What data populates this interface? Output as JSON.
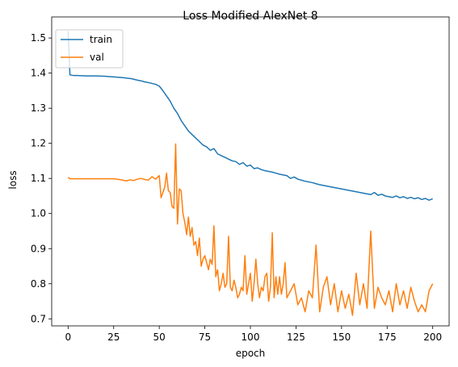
{
  "chart_data": {
    "type": "line",
    "title": "Loss Modified AlexNet 8",
    "xlabel": "epoch",
    "ylabel": "loss",
    "xlim": [
      -9,
      209
    ],
    "ylim": [
      0.68,
      1.56
    ],
    "xticks": [
      0,
      25,
      50,
      75,
      100,
      125,
      150,
      175,
      200
    ],
    "yticks": [
      0.7,
      0.8,
      0.9,
      1.0,
      1.1,
      1.2,
      1.3,
      1.4,
      1.5
    ],
    "grid": false,
    "legend_position": "top-left",
    "series": [
      {
        "name": "train",
        "color": "#1f77b4",
        "x": [
          0,
          1,
          3,
          5,
          10,
          15,
          20,
          25,
          30,
          35,
          38,
          40,
          42,
          45,
          48,
          50,
          52,
          54,
          56,
          58,
          60,
          62,
          64,
          66,
          68,
          70,
          72,
          74,
          76,
          78,
          80,
          82,
          84,
          86,
          88,
          90,
          92,
          94,
          96,
          98,
          100,
          102,
          104,
          106,
          108,
          110,
          112,
          114,
          116,
          118,
          120,
          122,
          124,
          126,
          128,
          130,
          132,
          134,
          136,
          138,
          140,
          142,
          144,
          146,
          148,
          150,
          152,
          154,
          156,
          158,
          160,
          162,
          164,
          166,
          168,
          170,
          172,
          174,
          176,
          178,
          180,
          182,
          184,
          186,
          188,
          190,
          192,
          194,
          196,
          198,
          200
        ],
        "values": [
          1.52,
          1.395,
          1.393,
          1.393,
          1.392,
          1.392,
          1.391,
          1.389,
          1.387,
          1.384,
          1.38,
          1.378,
          1.375,
          1.372,
          1.368,
          1.363,
          1.35,
          1.335,
          1.32,
          1.3,
          1.285,
          1.265,
          1.25,
          1.235,
          1.225,
          1.215,
          1.205,
          1.195,
          1.19,
          1.18,
          1.185,
          1.17,
          1.165,
          1.16,
          1.155,
          1.15,
          1.148,
          1.14,
          1.145,
          1.135,
          1.138,
          1.128,
          1.13,
          1.125,
          1.122,
          1.12,
          1.118,
          1.115,
          1.112,
          1.11,
          1.108,
          1.1,
          1.104,
          1.098,
          1.095,
          1.092,
          1.09,
          1.088,
          1.085,
          1.082,
          1.08,
          1.078,
          1.076,
          1.074,
          1.072,
          1.07,
          1.068,
          1.066,
          1.064,
          1.062,
          1.06,
          1.058,
          1.056,
          1.054,
          1.06,
          1.052,
          1.055,
          1.05,
          1.048,
          1.046,
          1.05,
          1.045,
          1.048,
          1.043,
          1.046,
          1.042,
          1.045,
          1.04,
          1.043,
          1.038,
          1.042
        ]
      },
      {
        "name": "val",
        "color": "#ff7f0e",
        "x": [
          0,
          1,
          3,
          5,
          10,
          15,
          20,
          25,
          28,
          30,
          32,
          34,
          36,
          38,
          40,
          42,
          44,
          46,
          48,
          50,
          51,
          52,
          53,
          54,
          55,
          56,
          57,
          58,
          59,
          60,
          61,
          62,
          63,
          64,
          65,
          66,
          67,
          68,
          69,
          70,
          71,
          72,
          73,
          74,
          75,
          76,
          77,
          78,
          79,
          80,
          81,
          82,
          83,
          84,
          85,
          86,
          87,
          88,
          89,
          90,
          91,
          92,
          93,
          94,
          95,
          96,
          97,
          98,
          99,
          100,
          101,
          102,
          103,
          104,
          105,
          106,
          107,
          108,
          109,
          110,
          111,
          112,
          113,
          114,
          115,
          116,
          117,
          118,
          119,
          120,
          122,
          124,
          126,
          128,
          130,
          132,
          134,
          136,
          138,
          140,
          142,
          144,
          146,
          148,
          150,
          152,
          154,
          156,
          158,
          160,
          162,
          164,
          166,
          168,
          170,
          172,
          174,
          176,
          178,
          180,
          182,
          184,
          186,
          188,
          190,
          192,
          194,
          196,
          198,
          200
        ],
        "values": [
          1.103,
          1.099,
          1.099,
          1.099,
          1.099,
          1.099,
          1.099,
          1.099,
          1.097,
          1.095,
          1.093,
          1.096,
          1.094,
          1.098,
          1.1,
          1.097,
          1.095,
          1.105,
          1.098,
          1.108,
          1.045,
          1.06,
          1.075,
          1.115,
          1.065,
          1.06,
          1.02,
          1.015,
          1.198,
          0.97,
          1.07,
          1.065,
          1.0,
          0.975,
          0.94,
          0.99,
          0.935,
          0.96,
          0.91,
          0.92,
          0.88,
          0.93,
          0.85,
          0.87,
          0.88,
          0.86,
          0.84,
          0.87,
          0.855,
          0.965,
          0.82,
          0.84,
          0.78,
          0.8,
          0.83,
          0.79,
          0.8,
          0.935,
          0.79,
          0.78,
          0.81,
          0.79,
          0.76,
          0.77,
          0.79,
          0.78,
          0.88,
          0.77,
          0.8,
          0.83,
          0.75,
          0.8,
          0.87,
          0.8,
          0.76,
          0.79,
          0.78,
          0.82,
          0.83,
          0.75,
          0.79,
          0.945,
          0.76,
          0.82,
          0.77,
          0.82,
          0.77,
          0.8,
          0.86,
          0.76,
          0.78,
          0.8,
          0.74,
          0.76,
          0.72,
          0.78,
          0.76,
          0.91,
          0.72,
          0.79,
          0.82,
          0.74,
          0.8,
          0.72,
          0.78,
          0.73,
          0.77,
          0.71,
          0.83,
          0.74,
          0.8,
          0.73,
          0.95,
          0.73,
          0.79,
          0.76,
          0.74,
          0.78,
          0.72,
          0.8,
          0.74,
          0.78,
          0.73,
          0.79,
          0.75,
          0.72,
          0.74,
          0.72,
          0.78,
          0.8
        ]
      }
    ]
  }
}
